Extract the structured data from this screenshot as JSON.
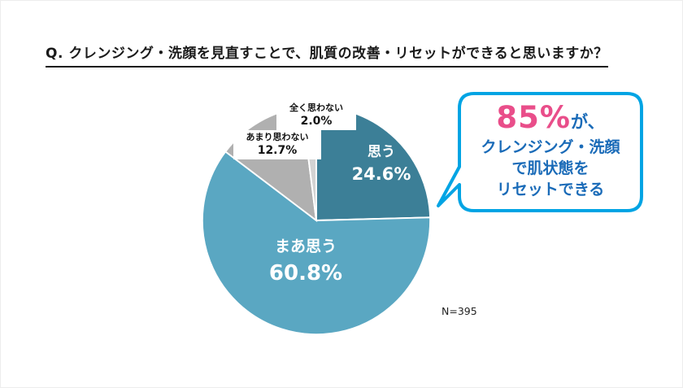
{
  "page": {
    "title": "Q. クレンジング・洗顔を見直すことで、肌質の改善・リセットができると思いますか？",
    "sample_note": "N=395"
  },
  "callout": {
    "highlight": "85%",
    "suffix": "が、",
    "lines": [
      "クレンジング・洗顔",
      "で肌状態を",
      "リセットできる"
    ]
  },
  "colors": {
    "callout_border": "#00a4e4",
    "callout_text_blue": "#1a6bb8",
    "highlight_pink": "#e94e8a",
    "slice_omou": "#3c7f97",
    "slice_maa": "#5aa7c2",
    "slice_amari": "#b0b0b0",
    "slice_mattaku": "#d3d3d3"
  },
  "chart_data": {
    "type": "pie",
    "title": "クレンジング・洗顔を見直すことで、肌質の改善・リセットができると思いますか？",
    "sample_size": "N=395",
    "start_angle_deg": 0,
    "direction": "clockwise",
    "legend_position": "none",
    "slices": [
      {
        "label": "思う",
        "value": 24.6,
        "pct_label": "24.6%",
        "color": "#3c7f97"
      },
      {
        "label": "まあ思う",
        "value": 60.8,
        "pct_label": "60.8%",
        "color": "#5aa7c2"
      },
      {
        "label": "あまり思わない",
        "value": 12.7,
        "pct_label": "12.7%",
        "color": "#b0b0b0"
      },
      {
        "label": "全く思わない",
        "value": 2.0,
        "pct_label": "2.0%",
        "color": "#d3d3d3"
      }
    ]
  }
}
